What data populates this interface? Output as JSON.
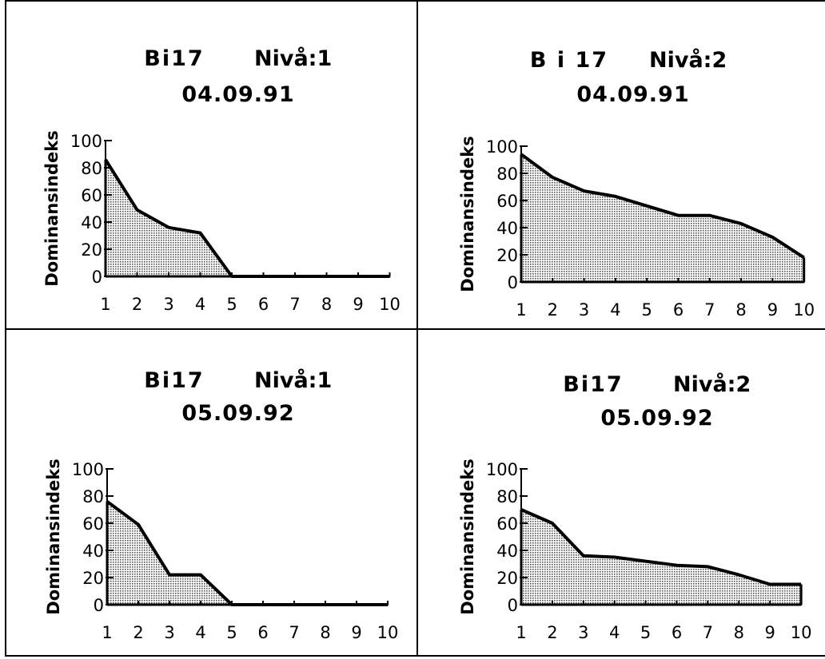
{
  "chart_data": [
    {
      "type": "area",
      "title_site": "Bi17",
      "title_level": "Nivå:1",
      "date": "04.09.91",
      "ylabel": "Dominansindeks",
      "x": [
        1,
        2,
        3,
        4,
        5,
        6,
        7,
        8,
        9,
        10
      ],
      "values": [
        86,
        49,
        36,
        32,
        0,
        0,
        0,
        0,
        0,
        0
      ],
      "ylim": [
        0,
        100
      ],
      "yticks": [
        0,
        20,
        40,
        60,
        80,
        100
      ],
      "grid": false,
      "fill": "#b8b8b8"
    },
    {
      "type": "area",
      "title_site": "B i 17",
      "title_level": "Nivå:2",
      "date": "04.09.91",
      "ylabel": "Dominansindeks",
      "x": [
        1,
        2,
        3,
        4,
        5,
        6,
        7,
        8,
        9,
        10
      ],
      "values": [
        94,
        77,
        67,
        63,
        56,
        49,
        49,
        43,
        33,
        18
      ],
      "ylim": [
        0,
        100
      ],
      "yticks": [
        0,
        20,
        40,
        60,
        80,
        100
      ],
      "grid": false,
      "fill": "#b8b8b8"
    },
    {
      "type": "area",
      "title_site": "Bi17",
      "title_level": "Nivå:1",
      "date": "05.09.92",
      "ylabel": "Dominansindeks",
      "x": [
        1,
        2,
        3,
        4,
        5,
        6,
        7,
        8,
        9,
        10
      ],
      "values": [
        76,
        59,
        22,
        22,
        0,
        0,
        0,
        0,
        0,
        0
      ],
      "ylim": [
        0,
        100
      ],
      "yticks": [
        0,
        20,
        40,
        60,
        80,
        100
      ],
      "grid": false,
      "fill": "#b8b8b8"
    },
    {
      "type": "area",
      "title_site": "Bi17",
      "title_level": "Nivå:2",
      "date": "05.09.92",
      "ylabel": "Dominansindeks",
      "x": [
        1,
        2,
        3,
        4,
        5,
        6,
        7,
        8,
        9,
        10
      ],
      "values": [
        70,
        60,
        36,
        35,
        32,
        29,
        28,
        22,
        15,
        15
      ],
      "ylim": [
        0,
        100
      ],
      "yticks": [
        0,
        20,
        40,
        60,
        80,
        100
      ],
      "grid": false,
      "fill": "#b8b8b8"
    }
  ]
}
